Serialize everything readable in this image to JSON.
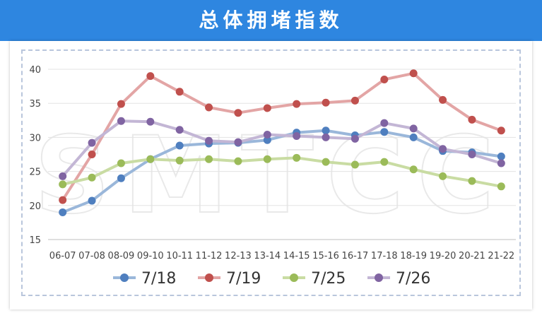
{
  "header": {
    "title": "总体拥堵指数"
  },
  "watermark": "SMTCC",
  "chart_data": {
    "type": "line",
    "title": "总体拥堵指数",
    "categories": [
      "06-07",
      "07-08",
      "08-09",
      "09-10",
      "10-11",
      "11-12",
      "12-13",
      "13-14",
      "14-15",
      "15-16",
      "16-17",
      "17-18",
      "18-19",
      "19-20",
      "20-21",
      "21-22"
    ],
    "ylim": [
      15,
      40
    ],
    "yticks": [
      15,
      20,
      25,
      30,
      35,
      40
    ],
    "grid": true,
    "legend_position": "bottom",
    "series": [
      {
        "name": "7/18",
        "line_color": "#9ab7da",
        "marker_color": "#4f7fbf",
        "values": [
          19.0,
          20.7,
          24.0,
          26.8,
          28.8,
          29.1,
          29.2,
          29.6,
          30.7,
          31.0,
          30.3,
          30.8,
          30.0,
          28.0,
          27.8,
          27.2
        ]
      },
      {
        "name": "7/19",
        "line_color": "#e3a5a5",
        "marker_color": "#c0504d",
        "values": [
          20.8,
          27.5,
          34.9,
          39.0,
          36.7,
          34.4,
          33.6,
          34.3,
          34.9,
          35.1,
          35.4,
          38.5,
          39.4,
          35.5,
          32.6,
          31.0
        ]
      },
      {
        "name": "7/25",
        "line_color": "#c9dca3",
        "marker_color": "#9bbb59",
        "values": [
          23.1,
          24.1,
          26.2,
          26.8,
          26.6,
          26.8,
          26.5,
          26.8,
          27.0,
          26.4,
          26.0,
          26.4,
          25.3,
          24.3,
          23.6,
          22.8
        ]
      },
      {
        "name": "7/26",
        "line_color": "#c3b6d5",
        "marker_color": "#8064a2",
        "values": [
          24.3,
          29.2,
          32.4,
          32.3,
          31.1,
          29.5,
          29.3,
          30.4,
          30.2,
          30.0,
          29.8,
          32.1,
          31.3,
          28.3,
          27.5,
          26.2
        ]
      }
    ]
  }
}
